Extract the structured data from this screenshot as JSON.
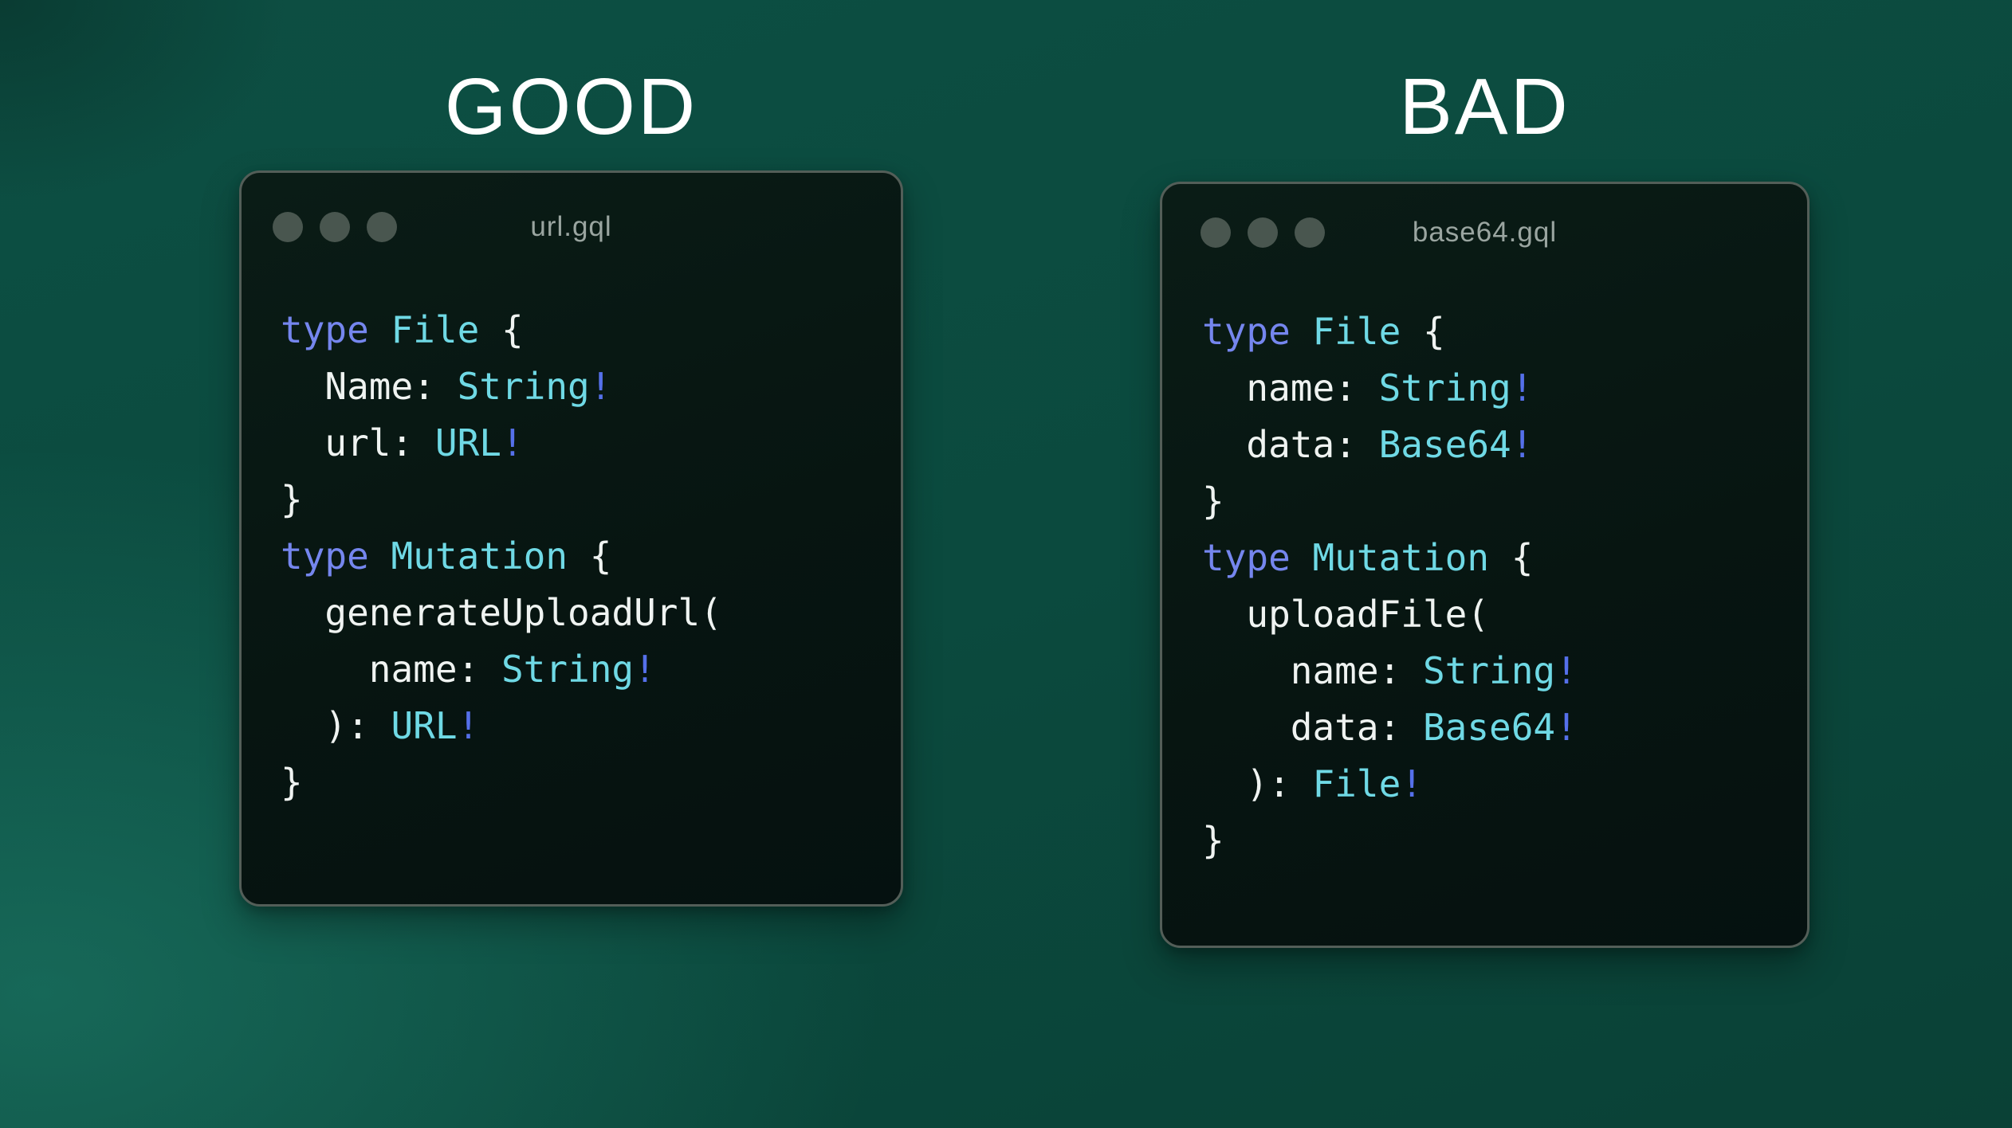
{
  "panels": [
    {
      "verdict": "GOOD",
      "window_title": "url.gql",
      "code": [
        [
          [
            "kw",
            "type"
          ],
          [
            "pl",
            " "
          ],
          [
            "ty",
            "File"
          ],
          [
            "pl",
            " {"
          ]
        ],
        [
          [
            "pl",
            "  Name: "
          ],
          [
            "ty",
            "String"
          ],
          [
            "bang",
            "!"
          ]
        ],
        [
          [
            "pl",
            "  url: "
          ],
          [
            "ty",
            "URL"
          ],
          [
            "bang",
            "!"
          ]
        ],
        [
          [
            "pl",
            "}"
          ]
        ],
        [
          [
            "kw",
            "type"
          ],
          [
            "pl",
            " "
          ],
          [
            "ty",
            "Mutation"
          ],
          [
            "pl",
            " {"
          ]
        ],
        [
          [
            "pl",
            "  generateUploadUrl("
          ]
        ],
        [
          [
            "pl",
            "    name: "
          ],
          [
            "ty",
            "String"
          ],
          [
            "bang",
            "!"
          ]
        ],
        [
          [
            "pl",
            "  ): "
          ],
          [
            "ty",
            "URL"
          ],
          [
            "bang",
            "!"
          ]
        ],
        [
          [
            "pl",
            "}"
          ]
        ]
      ]
    },
    {
      "verdict": "BAD",
      "window_title": "base64.gql",
      "code": [
        [
          [
            "kw",
            "type"
          ],
          [
            "pl",
            " "
          ],
          [
            "ty",
            "File"
          ],
          [
            "pl",
            " {"
          ]
        ],
        [
          [
            "pl",
            "  name: "
          ],
          [
            "ty",
            "String"
          ],
          [
            "bang",
            "!"
          ]
        ],
        [
          [
            "pl",
            "  data: "
          ],
          [
            "ty",
            "Base64"
          ],
          [
            "bang",
            "!"
          ]
        ],
        [
          [
            "pl",
            "}"
          ]
        ],
        [
          [
            "kw",
            "type"
          ],
          [
            "pl",
            " "
          ],
          [
            "ty",
            "Mutation"
          ],
          [
            "pl",
            " {"
          ]
        ],
        [
          [
            "pl",
            "  uploadFile("
          ]
        ],
        [
          [
            "pl",
            "    name: "
          ],
          [
            "ty",
            "String"
          ],
          [
            "bang",
            "!"
          ]
        ],
        [
          [
            "pl",
            "    data: "
          ],
          [
            "ty",
            "Base64"
          ],
          [
            "bang",
            "!"
          ]
        ],
        [
          [
            "pl",
            "  ): "
          ],
          [
            "ty",
            "File"
          ],
          [
            "bang",
            "!"
          ]
        ],
        [
          [
            "pl",
            "}"
          ]
        ]
      ]
    }
  ],
  "colors": {
    "background_teal_top": "#0d4f43",
    "background_teal": "#0b4a3e",
    "background_teal_dark": "#0a4136",
    "title_text": "#ffffff",
    "window_bg": "#071511",
    "window_border": "#535e58",
    "window_dot": "#49564f",
    "window_title_text": "#9aa5a0",
    "code_plain": "#eff3f1",
    "code_keyword": "#7586ee",
    "code_type": "#6fd9e5",
    "code_bang": "#5570ea"
  }
}
